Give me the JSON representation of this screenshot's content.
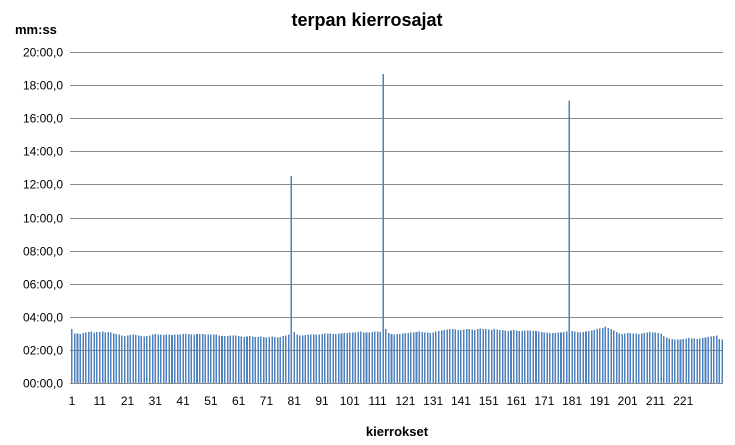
{
  "chart_data": {
    "type": "bar",
    "title": "terpan  kierrosajat",
    "ylabel": "mm:ss",
    "xlabel": "kierrokset",
    "ylim": [
      0,
      1200
    ],
    "ytick_values": [
      0,
      120,
      240,
      360,
      480,
      600,
      720,
      840,
      960,
      1080,
      1200
    ],
    "ytick_labels": [
      "00:00,0",
      "02:00,0",
      "04:00,0",
      "06:00,0",
      "08:00,0",
      "10:00,0",
      "12:00,0",
      "14:00,0",
      "16:00,0",
      "18:00,0",
      "20:00,0"
    ],
    "xtick_labels": [
      "1",
      "11",
      "21",
      "31",
      "41",
      "51",
      "61",
      "71",
      "81",
      "91",
      "101",
      "111",
      "121",
      "131",
      "141",
      "151",
      "161",
      "171",
      "181",
      "191",
      "201",
      "211",
      "221"
    ],
    "bar_color": "#4f81bd",
    "grid": true,
    "series": [
      {
        "values": [
          195,
          180,
          180,
          178,
          182,
          183,
          185,
          186,
          183,
          185,
          185,
          186,
          184,
          185,
          183,
          180,
          178,
          176,
          172,
          170,
          172,
          174,
          175,
          174,
          172,
          170,
          169,
          171,
          173,
          175,
          177,
          176,
          175,
          174,
          176,
          175,
          174,
          175,
          176,
          175,
          177,
          178,
          177,
          176,
          176,
          178,
          177,
          177,
          176,
          176,
          175,
          175,
          176,
          173,
          171,
          170,
          171,
          172,
          173,
          172,
          170,
          168,
          167,
          169,
          170,
          168,
          166,
          167,
          168,
          166,
          165,
          167,
          168,
          166,
          165,
          166,
          170,
          172,
          176,
          750,
          185,
          176,
          172,
          173,
          174,
          175,
          176,
          175,
          176,
          175,
          178,
          179,
          180,
          179,
          178,
          177,
          179,
          180,
          181,
          182,
          184,
          183,
          184,
          185,
          186,
          184,
          183,
          184,
          185,
          186,
          187,
          185,
          1120,
          195,
          182,
          178,
          176,
          177,
          178,
          180,
          181,
          182,
          183,
          184,
          185,
          186,
          185,
          184,
          183,
          182,
          184,
          186,
          188,
          190,
          192,
          194,
          196,
          195,
          194,
          193,
          192,
          194,
          196,
          195,
          194,
          193,
          195,
          197,
          196,
          195,
          194,
          193,
          195,
          194,
          193,
          192,
          190,
          189,
          191,
          192,
          190,
          189,
          188,
          190,
          191,
          190,
          189,
          188,
          187,
          185,
          184,
          183,
          182,
          181,
          182,
          183,
          184,
          185,
          186,
          1025,
          188,
          186,
          185,
          184,
          185,
          186,
          188,
          190,
          192,
          195,
          198,
          200,
          205,
          200,
          195,
          190,
          185,
          180,
          178,
          180,
          182,
          181,
          180,
          179,
          178,
          180,
          182,
          184,
          185,
          184,
          183,
          182,
          180,
          170,
          165,
          162,
          160,
          158,
          157,
          158,
          160,
          162,
          163,
          162,
          161,
          160,
          162,
          164,
          165,
          166,
          168,
          170,
          172,
          160,
          158
        ]
      }
    ]
  }
}
